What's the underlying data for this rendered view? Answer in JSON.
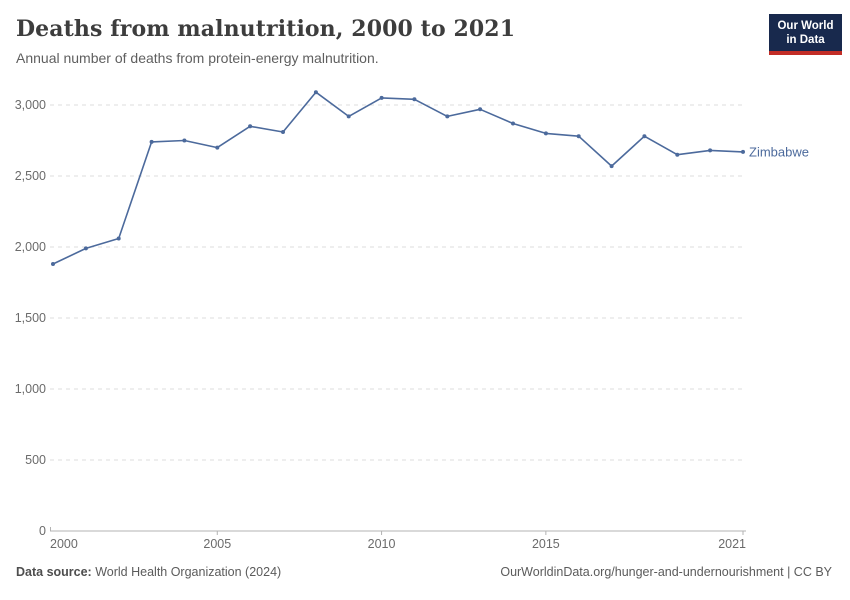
{
  "header": {
    "title": "Deaths from malnutrition, 2000 to 2021",
    "subtitle": "Annual number of deaths from protein-energy malnutrition.",
    "logo": {
      "line1": "Our World",
      "line2": "in Data",
      "bg_color": "#18294d",
      "accent_color": "#c22d26"
    }
  },
  "chart_data": {
    "type": "line",
    "title": "Deaths from malnutrition, 2000 to 2021",
    "subtitle": "Annual number of deaths from protein-energy malnutrition.",
    "x": [
      2000,
      2001,
      2002,
      2003,
      2004,
      2005,
      2006,
      2007,
      2008,
      2009,
      2010,
      2011,
      2012,
      2013,
      2014,
      2015,
      2016,
      2017,
      2018,
      2019,
      2020,
      2021
    ],
    "series": [
      {
        "name": "Zimbabwe",
        "color": "#4C6A9C",
        "values": [
          1880,
          1990,
          2060,
          2740,
          2750,
          2700,
          2850,
          2810,
          3090,
          2920,
          3050,
          3040,
          2920,
          2970,
          2870,
          2800,
          2780,
          2570,
          2780,
          2650,
          2680,
          2670
        ]
      }
    ],
    "ylim": [
      0,
      3000
    ],
    "yticks": [
      0,
      500,
      1000,
      1500,
      2000,
      2500,
      3000
    ],
    "ytick_labels": [
      "0",
      "500",
      "1,000",
      "1,500",
      "2,000",
      "2,500",
      "3,000"
    ],
    "xticks": [
      2000,
      2005,
      2010,
      2015,
      2021
    ],
    "xtick_labels": [
      "2000",
      "2005",
      "2010",
      "2015",
      "2021"
    ],
    "grid": "horizontal-dashed",
    "grid_color": "#dedede",
    "axis_color": "#b3b3b3",
    "tick_text_color": "#6b6b6b",
    "legend": "end-of-line-label",
    "xlabel": "",
    "ylabel": ""
  },
  "footer": {
    "source_label": "Data source:",
    "source_text": "World Health Organization (2024)",
    "credit": "OurWorldinData.org/hunger-and-undernourishment | CC BY"
  }
}
